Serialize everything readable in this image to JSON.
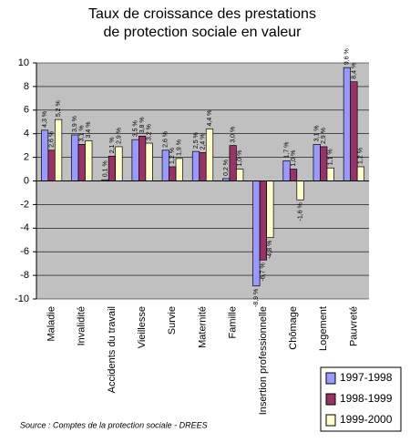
{
  "chart_data": {
    "type": "bar",
    "title": [
      "Taux de croissance des prestations",
      "de protection sociale en valeur"
    ],
    "source": "Source : Comptes de la protection sociale - DREES",
    "categories": [
      "Maladie",
      "Invalidité",
      "Accidents du travail",
      "Vieillesse",
      "Survie",
      "Maternité",
      "Famille",
      "Insertion professionnelle",
      "Chômage",
      "Logement",
      "Pauvreté"
    ],
    "series": [
      {
        "name": "1997-1998",
        "color": "#9999ff",
        "values": [
          4.3,
          3.9,
          0.1,
          3.5,
          2.6,
          2.5,
          0.2,
          -8.9,
          1.7,
          3.1,
          9.6
        ],
        "value_labels": [
          "4,3 %",
          "3,9 %",
          "0,1 %",
          "3,5 %",
          "2,6 %",
          "2,5 %",
          "0,2 %",
          "-8,9 %",
          "1,7 %",
          "3,1 %",
          "9,6 %"
        ]
      },
      {
        "name": "1998-1999",
        "color": "#993366",
        "values": [
          2.6,
          3.1,
          2.1,
          3.8,
          1.2,
          2.4,
          3.0,
          -6.7,
          1.0,
          2.9,
          8.4
        ],
        "value_labels": [
          "2,6 %",
          "3,1 %",
          "2,1 %",
          "3,8 %",
          "1,2 %",
          "2,4 %",
          "3,0 %",
          "-6,7 %",
          "1,0 %",
          "2,9 %",
          "8,4 %"
        ]
      },
      {
        "name": "1999-2000",
        "color": "#ffffcc",
        "values": [
          5.2,
          3.4,
          2.9,
          3.2,
          1.9,
          4.4,
          1.0,
          -4.8,
          -1.6,
          1.1,
          1.2
        ],
        "value_labels": [
          "5,2 %",
          "3,4 %",
          "2,9 %",
          "3,2 %",
          "1,9 %",
          "4,4 %",
          "1,0 %",
          "-4,8 %",
          "-1,6 %",
          "1,1 %",
          "1,2 %"
        ]
      }
    ],
    "ylim": [
      -10,
      10
    ],
    "yticks": [
      -10,
      -8,
      -6,
      -4,
      -2,
      0,
      2,
      4,
      6,
      8,
      10
    ],
    "grid": true,
    "legend": "bottom-right"
  }
}
